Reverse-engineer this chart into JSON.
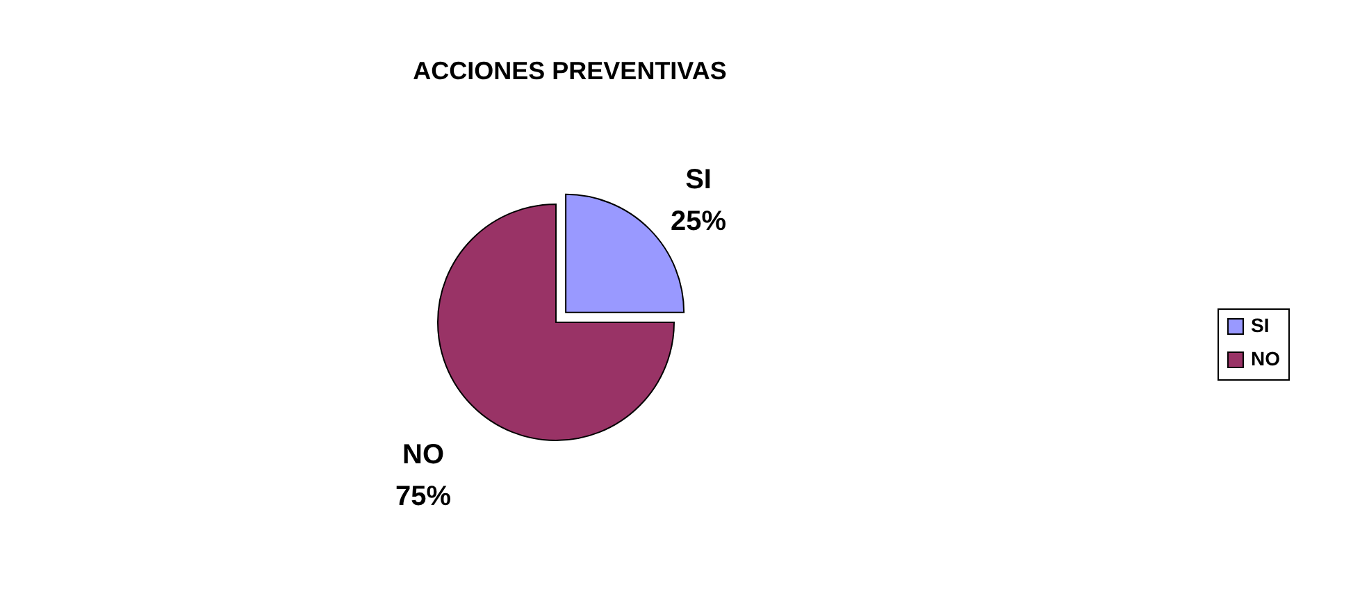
{
  "chart_data": {
    "type": "pie",
    "title": "ACCIONES PREVENTIVAS",
    "categories": [
      "SI",
      "NO"
    ],
    "values": [
      25,
      75
    ],
    "colors": [
      "#9999ff",
      "#993366"
    ],
    "value_labels": [
      "25%",
      "75%"
    ],
    "legend": "right"
  }
}
